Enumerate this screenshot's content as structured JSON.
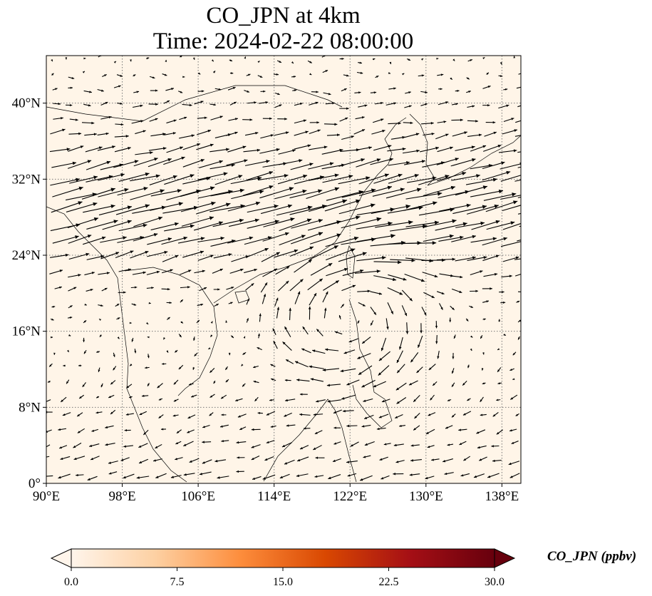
{
  "title": {
    "line1": "CO_JPN at 4km",
    "line2": "Time: 2024-02-22 08:00:00"
  },
  "map": {
    "extent": {
      "lon_min": 90,
      "lon_max": 140,
      "lat_min": 0,
      "lat_max": 45
    },
    "background_color": "#fff5e8",
    "grid_lines": "dotted",
    "lon_ticks": [
      {
        "value": 90,
        "label": "90°E"
      },
      {
        "value": 98,
        "label": "98°E"
      },
      {
        "value": 106,
        "label": "106°E"
      },
      {
        "value": 114,
        "label": "114°E"
      },
      {
        "value": 122,
        "label": "122°E"
      },
      {
        "value": 130,
        "label": "130°E"
      },
      {
        "value": 138,
        "label": "138°E"
      }
    ],
    "lat_ticks": [
      {
        "value": 0,
        "label": "0°"
      },
      {
        "value": 8,
        "label": "8°N"
      },
      {
        "value": 16,
        "label": "16°N"
      },
      {
        "value": 24,
        "label": "24°N"
      },
      {
        "value": 32,
        "label": "32°N"
      },
      {
        "value": 40,
        "label": "40°N"
      }
    ],
    "wind_vectors": "quiver"
  },
  "colorbar": {
    "label": "CO_JPN (ppbv)",
    "colormap": [
      "#fff5eb",
      "#fdd0a2",
      "#fd8d3c",
      "#d94801",
      "#a50f15",
      "#67000d"
    ],
    "ticks": [
      "0.0",
      "7.5",
      "15.0",
      "22.5",
      "30.0"
    ],
    "range": [
      0,
      30
    ],
    "extend": "both"
  }
}
